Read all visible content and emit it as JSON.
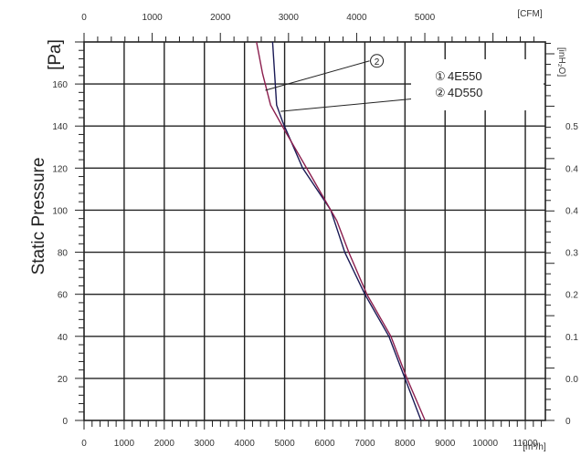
{
  "chart_data": {
    "type": "line",
    "ylabel": "Static Pressure",
    "units": {
      "left": "[Pa]",
      "bottom": "[m³/h]",
      "top": "[CFM]",
      "right": "[inH₂O]"
    },
    "grid": true,
    "xlim": [
      0,
      11500
    ],
    "ylim": [
      0,
      180
    ],
    "x_ticks": [
      "0",
      "1000",
      "2000",
      "3000",
      "4000",
      "5000",
      "6000",
      "7000",
      "8000",
      "9000",
      "10000",
      "11000"
    ],
    "y_ticks": [
      "0",
      "20",
      "40",
      "60",
      "80",
      "100",
      "120",
      "140",
      "160"
    ],
    "top_ticks": [
      "0",
      "1000",
      "2000",
      "3000",
      "4000",
      "5000"
    ],
    "right_ticks": [
      "0",
      "0.0",
      "0.1",
      "0.2",
      "0.3",
      "0.4",
      "0.4",
      "0.5"
    ],
    "legend": [
      {
        "marker": "①",
        "label": "4E550"
      },
      {
        "marker": "②",
        "label": "4D550"
      }
    ],
    "series": [
      {
        "name": "4E550",
        "marker": "①",
        "color": "#1a1a55",
        "points": [
          [
            4700,
            180
          ],
          [
            4750,
            165
          ],
          [
            4800,
            150
          ],
          [
            4950,
            142
          ],
          [
            5450,
            120
          ],
          [
            6150,
            100
          ],
          [
            6500,
            80
          ],
          [
            7000,
            60
          ],
          [
            7600,
            40
          ],
          [
            8000,
            20
          ],
          [
            8400,
            0
          ]
        ]
      },
      {
        "name": "4D550",
        "marker": "②",
        "color": "#8b1e4e",
        "points": [
          [
            4300,
            180
          ],
          [
            4450,
            165
          ],
          [
            4650,
            150
          ],
          [
            5000,
            138
          ],
          [
            5700,
            115
          ],
          [
            6300,
            95
          ],
          [
            6600,
            80
          ],
          [
            7050,
            60
          ],
          [
            7650,
            40
          ],
          [
            8050,
            20
          ],
          [
            8500,
            0
          ]
        ]
      }
    ],
    "callouts": [
      {
        "marker": "②",
        "series_index": 1
      },
      {
        "marker": "①",
        "series_index": 0
      }
    ]
  }
}
